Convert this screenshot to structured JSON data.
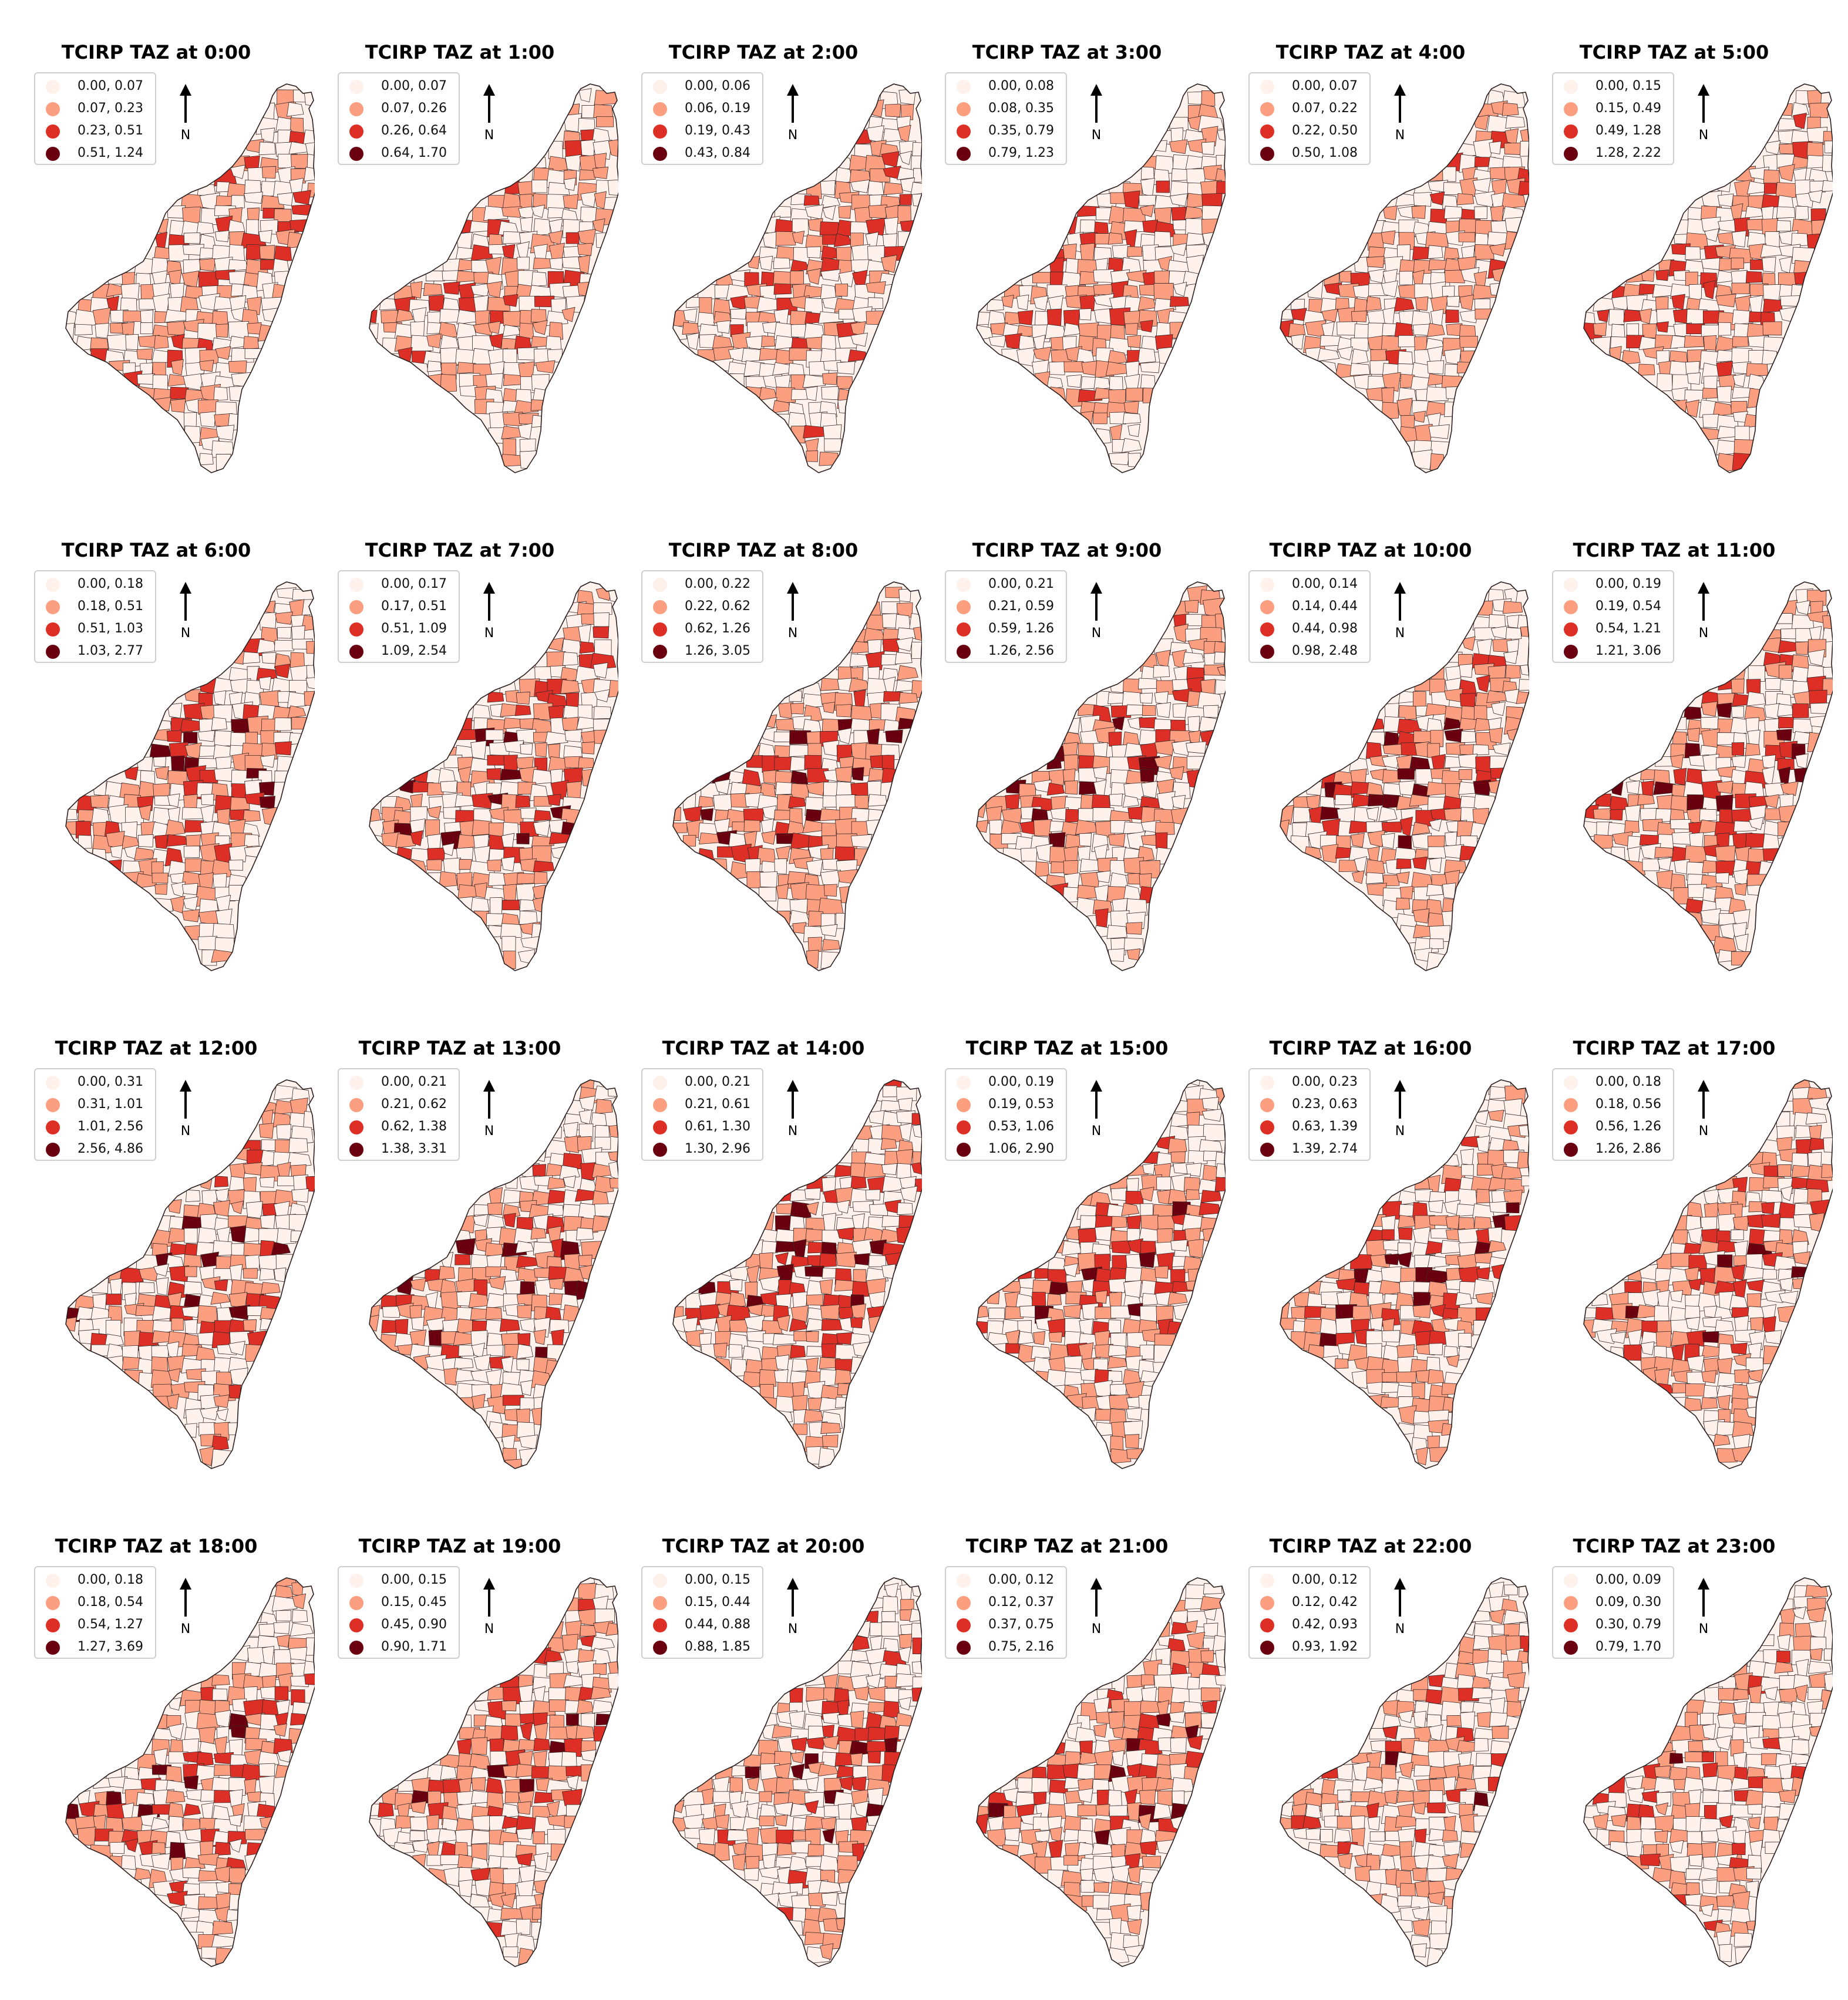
{
  "figure": {
    "class_colors": [
      "#fff1ec",
      "#fc9e80",
      "#de2f26",
      "#6a000f"
    ],
    "north_label": "N",
    "panels": [
      {
        "title": "TCIRP TAZ at 0:00",
        "legend": [
          "0.00, 0.07",
          "0.07, 0.23",
          "0.23, 0.51",
          "0.51, 1.24"
        ]
      },
      {
        "title": "TCIRP TAZ at 1:00",
        "legend": [
          "0.00, 0.07",
          "0.07, 0.26",
          "0.26, 0.64",
          "0.64, 1.70"
        ]
      },
      {
        "title": "TCIRP TAZ at 2:00",
        "legend": [
          "0.00, 0.06",
          "0.06, 0.19",
          "0.19, 0.43",
          "0.43, 0.84"
        ]
      },
      {
        "title": "TCIRP TAZ at 3:00",
        "legend": [
          "0.00, 0.08",
          "0.08, 0.35",
          "0.35, 0.79",
          "0.79, 1.23"
        ]
      },
      {
        "title": "TCIRP TAZ at 4:00",
        "legend": [
          "0.00, 0.07",
          "0.07, 0.22",
          "0.22, 0.50",
          "0.50, 1.08"
        ]
      },
      {
        "title": "TCIRP TAZ at 5:00",
        "legend": [
          "0.00, 0.15",
          "0.15, 0.49",
          "0.49, 1.28",
          "1.28, 2.22"
        ]
      },
      {
        "title": "TCIRP TAZ at 6:00",
        "legend": [
          "0.00, 0.18",
          "0.18, 0.51",
          "0.51, 1.03",
          "1.03, 2.77"
        ]
      },
      {
        "title": "TCIRP TAZ at 7:00",
        "legend": [
          "0.00, 0.17",
          "0.17, 0.51",
          "0.51, 1.09",
          "1.09, 2.54"
        ]
      },
      {
        "title": "TCIRP TAZ at 8:00",
        "legend": [
          "0.00, 0.22",
          "0.22, 0.62",
          "0.62, 1.26",
          "1.26, 3.05"
        ]
      },
      {
        "title": "TCIRP TAZ at 9:00",
        "legend": [
          "0.00, 0.21",
          "0.21, 0.59",
          "0.59, 1.26",
          "1.26, 2.56"
        ]
      },
      {
        "title": "TCIRP TAZ at 10:00",
        "legend": [
          "0.00, 0.14",
          "0.14, 0.44",
          "0.44, 0.98",
          "0.98, 2.48"
        ]
      },
      {
        "title": "TCIRP TAZ at 11:00",
        "legend": [
          "0.00, 0.19",
          "0.19, 0.54",
          "0.54, 1.21",
          "1.21, 3.06"
        ]
      },
      {
        "title": "TCIRP TAZ at 12:00",
        "legend": [
          "0.00, 0.31",
          "0.31, 1.01",
          "1.01, 2.56",
          "2.56, 4.86"
        ]
      },
      {
        "title": "TCIRP TAZ at 13:00",
        "legend": [
          "0.00, 0.21",
          "0.21, 0.62",
          "0.62, 1.38",
          "1.38, 3.31"
        ]
      },
      {
        "title": "TCIRP TAZ at 14:00",
        "legend": [
          "0.00, 0.21",
          "0.21, 0.61",
          "0.61, 1.30",
          "1.30, 2.96"
        ]
      },
      {
        "title": "TCIRP TAZ at 15:00",
        "legend": [
          "0.00, 0.19",
          "0.19, 0.53",
          "0.53, 1.06",
          "1.06, 2.90"
        ]
      },
      {
        "title": "TCIRP TAZ at 16:00",
        "legend": [
          "0.00, 0.23",
          "0.23, 0.63",
          "0.63, 1.39",
          "1.39, 2.74"
        ]
      },
      {
        "title": "TCIRP TAZ at 17:00",
        "legend": [
          "0.00, 0.18",
          "0.18, 0.56",
          "0.56, 1.26",
          "1.26, 2.86"
        ]
      },
      {
        "title": "TCIRP TAZ at 18:00",
        "legend": [
          "0.00, 0.18",
          "0.18, 0.54",
          "0.54, 1.27",
          "1.27, 3.69"
        ]
      },
      {
        "title": "TCIRP TAZ at 19:00",
        "legend": [
          "0.00, 0.15",
          "0.15, 0.45",
          "0.45, 0.90",
          "0.90, 1.71"
        ]
      },
      {
        "title": "TCIRP TAZ at 20:00",
        "legend": [
          "0.00, 0.15",
          "0.15, 0.44",
          "0.44, 0.88",
          "0.88, 1.85"
        ]
      },
      {
        "title": "TCIRP TAZ at 21:00",
        "legend": [
          "0.00, 0.12",
          "0.12, 0.37",
          "0.37, 0.75",
          "0.75, 2.16"
        ]
      },
      {
        "title": "TCIRP TAZ at 22:00",
        "legend": [
          "0.00, 0.12",
          "0.12, 0.42",
          "0.42, 0.93",
          "0.93, 1.92"
        ]
      },
      {
        "title": "TCIRP TAZ at 23:00",
        "legend": [
          "0.00, 0.09",
          "0.09, 0.30",
          "0.30, 0.79",
          "0.79, 1.70"
        ]
      }
    ]
  }
}
